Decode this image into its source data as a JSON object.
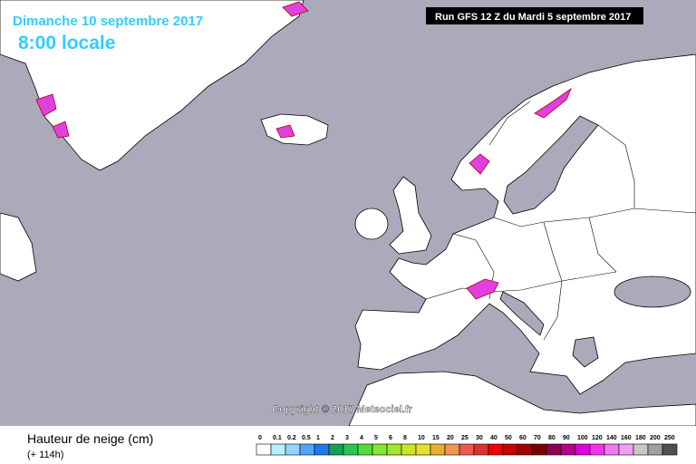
{
  "header": {
    "date": "Dimanche 10 septembre 2017",
    "time": "8:00 locale",
    "run": "Run GFS 12 Z du Mardi 5 septembre 2017"
  },
  "copyright": "Copyright © 2017 Meteociel.fr",
  "legend": {
    "title": "Hauteur de neige (cm)",
    "lead": "(+ 114h)",
    "items": [
      {
        "label": "0",
        "color": "#ffffff"
      },
      {
        "label": "0.1",
        "color": "#b4f0fa"
      },
      {
        "label": "0.2",
        "color": "#96d2fa"
      },
      {
        "label": "0.5",
        "color": "#50a5f5"
      },
      {
        "label": "1",
        "color": "#1e78eb"
      },
      {
        "label": "2",
        "color": "#14a050"
      },
      {
        "label": "3",
        "color": "#28c850"
      },
      {
        "label": "4",
        "color": "#50dc3c"
      },
      {
        "label": "5",
        "color": "#82e632"
      },
      {
        "label": "6",
        "color": "#a0e632"
      },
      {
        "label": "8",
        "color": "#c8e628"
      },
      {
        "label": "10",
        "color": "#e6dc32"
      },
      {
        "label": "15",
        "color": "#e6af2d"
      },
      {
        "label": "20",
        "color": "#f09650"
      },
      {
        "label": "25",
        "color": "#e65a50"
      },
      {
        "label": "30",
        "color": "#dc3232"
      },
      {
        "label": "40",
        "color": "#f00000"
      },
      {
        "label": "50",
        "color": "#c80000"
      },
      {
        "label": "60",
        "color": "#a00000"
      },
      {
        "label": "70",
        "color": "#780000"
      },
      {
        "label": "80",
        "color": "#8c0050"
      },
      {
        "label": "90",
        "color": "#b4008c"
      },
      {
        "label": "100",
        "color": "#dc00dc"
      },
      {
        "label": "120",
        "color": "#f032f0"
      },
      {
        "label": "140",
        "color": "#f078f0"
      },
      {
        "label": "160",
        "color": "#f0a0f0"
      },
      {
        "label": "180",
        "color": "#c8c8c8"
      },
      {
        "label": "200",
        "color": "#a0a0a0"
      },
      {
        "label": "250",
        "color": "#505050"
      }
    ]
  }
}
